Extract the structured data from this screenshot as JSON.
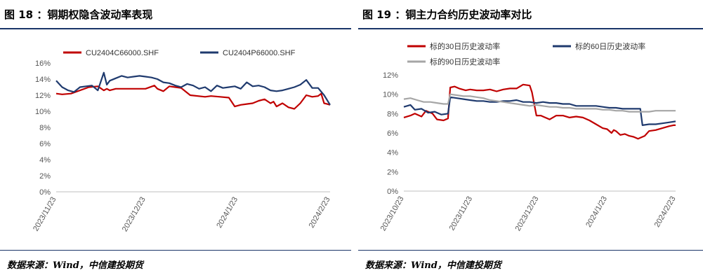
{
  "panels": [
    {
      "title": "图 18 ：铜期权隐含波动率表现",
      "source": "数据来源：Wind，中信建投期货"
    },
    {
      "title": "图 19 ：铜主力合约历史波动率对比",
      "source": "数据来源：Wind，中信建投期货"
    }
  ],
  "chart_data": [
    {
      "type": "line",
      "title": "",
      "xlabel": "",
      "ylabel": "",
      "ylim": [
        0,
        16
      ],
      "y_ticks": [
        "0%",
        "2%",
        "4%",
        "6%",
        "8%",
        "10%",
        "12%",
        "14%",
        "16%"
      ],
      "x_ticks": [
        "2023/11/23",
        "2023/12/23",
        "2024/1/23",
        "2024/2/23"
      ],
      "x_tick_index": [
        0,
        30,
        61,
        92
      ],
      "x_range": [
        0,
        92
      ],
      "grid": false,
      "legend": "top",
      "series": [
        {
          "name": "CU2404C66000.SHF",
          "color": "#c00000",
          "x": [
            0,
            2,
            5,
            8,
            11,
            14,
            16,
            17,
            18,
            20,
            22,
            25,
            30,
            33,
            34,
            36,
            38,
            40,
            42,
            45,
            50,
            52,
            55,
            58,
            60,
            62,
            64,
            66,
            68,
            70,
            72,
            73,
            74,
            76,
            78,
            80,
            82,
            84,
            86,
            88,
            89,
            90,
            91,
            92
          ],
          "y": [
            12.2,
            12.1,
            12.2,
            12.6,
            13.0,
            13.1,
            12.6,
            12.8,
            12.6,
            12.8,
            12.8,
            12.8,
            12.8,
            13.2,
            12.8,
            12.5,
            13.1,
            13.0,
            12.9,
            12.0,
            11.8,
            11.9,
            11.8,
            11.7,
            10.6,
            10.8,
            10.9,
            11.0,
            11.3,
            11.5,
            11.0,
            11.2,
            10.6,
            11.0,
            10.5,
            10.3,
            11.0,
            12.0,
            11.8,
            11.9,
            12.2,
            11.0,
            10.9,
            10.8
          ]
        },
        {
          "name": "CU2404P66000.SHF",
          "color": "#1f3a6e",
          "x": [
            0,
            2,
            4,
            6,
            8,
            10,
            12,
            14,
            16,
            17,
            18,
            20,
            22,
            24,
            26,
            28,
            30,
            32,
            34,
            36,
            38,
            40,
            42,
            44,
            46,
            48,
            50,
            52,
            54,
            56,
            58,
            60,
            62,
            64,
            66,
            68,
            70,
            72,
            74,
            76,
            78,
            80,
            82,
            84,
            86,
            88,
            90,
            92
          ],
          "y": [
            13.8,
            13.0,
            12.6,
            12.4,
            13.0,
            13.1,
            13.2,
            12.6,
            14.8,
            13.3,
            13.8,
            14.1,
            14.4,
            14.2,
            14.3,
            14.4,
            14.3,
            14.2,
            14.0,
            13.6,
            13.5,
            13.2,
            13.0,
            13.4,
            13.2,
            12.8,
            13.0,
            12.5,
            13.2,
            12.9,
            13.0,
            13.1,
            12.8,
            13.6,
            13.1,
            13.2,
            13.0,
            12.6,
            12.5,
            12.6,
            12.8,
            13.0,
            13.3,
            13.9,
            12.9,
            12.9,
            12.0,
            10.8
          ]
        }
      ]
    },
    {
      "type": "line",
      "title": "",
      "xlabel": "",
      "ylabel": "",
      "ylim": [
        0,
        12
      ],
      "y_ticks": [
        "0%",
        "2%",
        "4%",
        "6%",
        "8%",
        "10%",
        "12%"
      ],
      "x_ticks": [
        "2023/10/23",
        "2023/11/23",
        "2023/12/23",
        "2024/1/23",
        "2024/2/23"
      ],
      "x_tick_index": [
        0,
        31,
        61,
        92,
        123
      ],
      "x_range": [
        0,
        123
      ],
      "grid": false,
      "legend": "top",
      "series": [
        {
          "name": "标的30日历史波动率",
          "color": "#c00000",
          "x": [
            0,
            3,
            5,
            8,
            10,
            13,
            15,
            18,
            20,
            21,
            23,
            25,
            28,
            30,
            33,
            36,
            39,
            42,
            45,
            48,
            51,
            54,
            57,
            58,
            60,
            62,
            63,
            66,
            69,
            72,
            75,
            78,
            81,
            84,
            87,
            90,
            92,
            94,
            95,
            96,
            98,
            100,
            102,
            104,
            106,
            108,
            109,
            111,
            114,
            117,
            120,
            122,
            123
          ],
          "y": [
            7.6,
            7.8,
            8.0,
            7.7,
            8.3,
            8.0,
            7.4,
            7.3,
            7.5,
            10.7,
            10.8,
            10.6,
            10.4,
            10.5,
            10.4,
            10.4,
            10.5,
            10.3,
            10.5,
            10.6,
            10.6,
            11.0,
            10.9,
            10.2,
            7.8,
            7.8,
            7.7,
            7.4,
            7.8,
            7.8,
            7.6,
            7.7,
            7.6,
            7.3,
            6.9,
            6.5,
            6.4,
            6.0,
            6.3,
            6.2,
            5.8,
            5.9,
            5.7,
            5.6,
            5.4,
            5.6,
            5.7,
            6.2,
            6.3,
            6.5,
            6.7,
            6.8,
            6.8
          ]
        },
        {
          "name": "标的60日历史波动率",
          "color": "#1f3a6e",
          "x": [
            0,
            3,
            5,
            8,
            11,
            14,
            17,
            20,
            21,
            24,
            27,
            30,
            33,
            36,
            39,
            42,
            45,
            48,
            51,
            54,
            57,
            60,
            63,
            66,
            69,
            72,
            75,
            78,
            81,
            84,
            87,
            90,
            93,
            96,
            99,
            102,
            105,
            107,
            108,
            111,
            114,
            117,
            120,
            123
          ],
          "y": [
            8.7,
            8.9,
            8.4,
            8.5,
            8.1,
            8.2,
            7.9,
            8.0,
            9.7,
            9.6,
            9.5,
            9.4,
            9.3,
            9.3,
            9.2,
            9.2,
            9.3,
            9.3,
            9.4,
            9.2,
            9.2,
            9.1,
            9.2,
            9.1,
            9.1,
            9.0,
            9.0,
            8.8,
            8.8,
            8.8,
            8.8,
            8.7,
            8.6,
            8.6,
            8.5,
            8.5,
            8.5,
            8.5,
            6.8,
            6.9,
            6.9,
            7.0,
            7.1,
            7.2
          ]
        },
        {
          "name": "标的90日历史波动率",
          "color": "#a6a6a6",
          "x": [
            0,
            3,
            6,
            9,
            12,
            15,
            18,
            20,
            21,
            24,
            27,
            30,
            33,
            36,
            39,
            42,
            45,
            48,
            51,
            54,
            57,
            60,
            63,
            66,
            69,
            72,
            75,
            78,
            81,
            84,
            87,
            90,
            93,
            96,
            99,
            102,
            105,
            108,
            111,
            114,
            117,
            120,
            123
          ],
          "y": [
            9.5,
            9.6,
            9.4,
            9.2,
            9.2,
            9.1,
            9.0,
            9.0,
            10.0,
            9.9,
            9.8,
            9.8,
            9.7,
            9.6,
            9.4,
            9.3,
            9.2,
            9.1,
            9.0,
            8.9,
            8.8,
            8.9,
            8.8,
            8.7,
            8.7,
            8.6,
            8.6,
            8.5,
            8.5,
            8.5,
            8.5,
            8.4,
            8.4,
            8.3,
            8.3,
            8.2,
            8.2,
            8.2,
            8.2,
            8.3,
            8.3,
            8.3,
            8.3
          ]
        }
      ]
    }
  ]
}
